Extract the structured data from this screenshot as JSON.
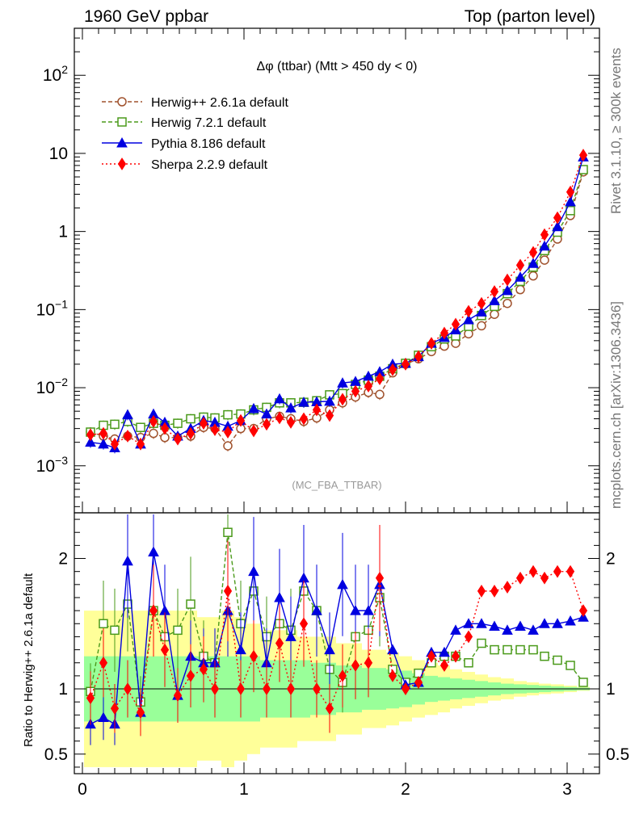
{
  "header": {
    "left": "1960 GeV ppbar",
    "right": "Top (parton level)"
  },
  "side": {
    "rivet": "Rivet 3.1.10, ≥ 300k events",
    "mcplots": "mcplots.cern.ch [arXiv:1306.3436]"
  },
  "colors": {
    "herwig_pp": "#a0522d",
    "herwig7": "#4a9a1a",
    "pythia": "#0000e0",
    "sherpa": "#ff0000",
    "band_inner": "#99ff99",
    "band_outer": "#ffff99"
  },
  "chart_data": [
    {
      "type": "line",
      "title": "Δφ (ttbar) (Mtt > 450 dy < 0)",
      "watermark": "(MC_FBA_TTBAR)",
      "xlabel": "",
      "ylabel": "",
      "xlim": [
        -0.05,
        3.2
      ],
      "ylim": [
        0.00025,
        400
      ],
      "y_scale": "log",
      "y_ticks": [
        {
          "value": 0.001,
          "label": "10",
          "sup": "−3"
        },
        {
          "value": 0.01,
          "label": "10",
          "sup": "−2"
        },
        {
          "value": 0.1,
          "label": "10",
          "sup": "−1"
        },
        {
          "value": 1,
          "label": "1",
          "sup": ""
        },
        {
          "value": 10,
          "label": "10",
          "sup": ""
        },
        {
          "value": 100,
          "label": "10",
          "sup": "2"
        }
      ],
      "legend_position": "top-left",
      "x": [
        0.05,
        0.13,
        0.2,
        0.28,
        0.36,
        0.44,
        0.51,
        0.59,
        0.67,
        0.75,
        0.82,
        0.9,
        0.98,
        1.06,
        1.14,
        1.22,
        1.29,
        1.37,
        1.45,
        1.53,
        1.61,
        1.69,
        1.77,
        1.84,
        1.92,
        2.0,
        2.08,
        2.16,
        2.24,
        2.31,
        2.39,
        2.47,
        2.55,
        2.63,
        2.71,
        2.79,
        2.86,
        2.94,
        3.02,
        3.1
      ],
      "series": [
        {
          "name": "Herwig++ 2.6.1a default",
          "marker": "open-circle",
          "style": "dashed",
          "values": [
            0.0027,
            0.0024,
            0.0022,
            0.0024,
            0.0023,
            0.0026,
            0.0023,
            0.0023,
            0.0024,
            0.0031,
            0.003,
            0.0018,
            0.003,
            0.003,
            0.004,
            0.0043,
            0.004,
            0.0037,
            0.0041,
            0.0052,
            0.0064,
            0.0076,
            0.0087,
            0.0082,
            0.0155,
            0.02,
            0.0234,
            0.029,
            0.034,
            0.037,
            0.049,
            0.062,
            0.087,
            0.12,
            0.18,
            0.27,
            0.43,
            0.8,
            1.6,
            5.8
          ]
        },
        {
          "name": "Herwig 7.2.1 default",
          "marker": "open-square",
          "style": "dashed",
          "values": [
            0.0027,
            0.0033,
            0.0034,
            0.0037,
            0.0031,
            0.0035,
            0.0033,
            0.0035,
            0.004,
            0.0042,
            0.0041,
            0.0045,
            0.0046,
            0.0052,
            0.0056,
            0.0064,
            0.0064,
            0.0065,
            0.0068,
            0.0081,
            0.0084,
            0.011,
            0.0125,
            0.014,
            0.0175,
            0.0205,
            0.026,
            0.0335,
            0.042,
            0.046,
            0.061,
            0.084,
            0.11,
            0.16,
            0.23,
            0.35,
            0.57,
            0.98,
            1.85,
            6.2
          ]
        },
        {
          "name": "Pythia 8.186 default",
          "marker": "filled-triangle",
          "style": "solid",
          "values": [
            0.002,
            0.0019,
            0.0017,
            0.0045,
            0.0019,
            0.0046,
            0.0036,
            0.0024,
            0.003,
            0.0038,
            0.0036,
            0.0032,
            0.0038,
            0.0054,
            0.0046,
            0.0072,
            0.0055,
            0.0065,
            0.0066,
            0.0067,
            0.0115,
            0.012,
            0.014,
            0.016,
            0.02,
            0.0205,
            0.025,
            0.037,
            0.044,
            0.055,
            0.074,
            0.093,
            0.13,
            0.175,
            0.26,
            0.39,
            0.65,
            1.15,
            2.4,
            9.0
          ]
        },
        {
          "name": "Sherpa 2.2.9 default",
          "marker": "filled-diamond",
          "style": "dotted",
          "values": [
            0.0025,
            0.0026,
            0.0019,
            0.0024,
            0.0019,
            0.0037,
            0.003,
            0.0022,
            0.0026,
            0.0035,
            0.0029,
            0.0027,
            0.0038,
            0.0028,
            0.0034,
            0.0041,
            0.0036,
            0.004,
            0.0052,
            0.0044,
            0.0071,
            0.009,
            0.0105,
            0.013,
            0.017,
            0.02,
            0.025,
            0.037,
            0.05,
            0.065,
            0.095,
            0.12,
            0.17,
            0.24,
            0.37,
            0.54,
            0.91,
            1.5,
            3.2,
            9.5
          ]
        }
      ]
    },
    {
      "type": "line",
      "ylabel": "Ratio to Herwig++ 2.6.1a default",
      "xlim": [
        -0.05,
        3.2
      ],
      "ylim": [
        0.35,
        2.35
      ],
      "x_ticks": [
        0,
        1,
        2,
        3
      ],
      "y_ticks": [
        0.5,
        1,
        2
      ],
      "y_ticks_right": [
        0.5,
        1,
        2
      ],
      "x": [
        0.05,
        0.13,
        0.2,
        0.28,
        0.36,
        0.44,
        0.51,
        0.59,
        0.67,
        0.75,
        0.82,
        0.9,
        0.98,
        1.06,
        1.14,
        1.22,
        1.29,
        1.37,
        1.45,
        1.53,
        1.61,
        1.69,
        1.77,
        1.84,
        1.92,
        2.0,
        2.08,
        2.16,
        2.24,
        2.31,
        2.39,
        2.47,
        2.55,
        2.63,
        2.71,
        2.79,
        2.86,
        2.94,
        3.02,
        3.1
      ],
      "band_inner_halfwidth": [
        0.25,
        0.25,
        0.25,
        0.25,
        0.25,
        0.25,
        0.25,
        0.25,
        0.25,
        0.25,
        0.25,
        0.25,
        0.25,
        0.25,
        0.22,
        0.22,
        0.22,
        0.22,
        0.2,
        0.2,
        0.18,
        0.18,
        0.16,
        0.16,
        0.15,
        0.14,
        0.12,
        0.1,
        0.09,
        0.08,
        0.07,
        0.06,
        0.05,
        0.04,
        0.035,
        0.03,
        0.025,
        0.02,
        0.015,
        0.01
      ],
      "band_outer_halfwidth": [
        0.6,
        0.6,
        0.6,
        0.6,
        0.6,
        0.6,
        0.6,
        0.6,
        0.6,
        0.55,
        0.55,
        0.6,
        0.55,
        0.5,
        0.45,
        0.45,
        0.45,
        0.4,
        0.4,
        0.4,
        0.35,
        0.35,
        0.3,
        0.3,
        0.28,
        0.25,
        0.22,
        0.2,
        0.18,
        0.15,
        0.13,
        0.11,
        0.09,
        0.08,
        0.06,
        0.05,
        0.04,
        0.035,
        0.025,
        0.015
      ],
      "series": [
        {
          "name": "Herwig 7.2.1 default",
          "values": [
            0.98,
            1.5,
            1.45,
            1.65,
            0.9,
            1.6,
            1.4,
            1.45,
            1.65,
            1.25,
            1.2,
            2.2,
            1.5,
            1.75,
            1.4,
            1.5,
            1.45,
            1.75,
            1.6,
            1.15,
            1.05,
            1.4,
            1.45,
            1.7,
            1.15,
            1.05,
            1.12,
            1.2,
            1.25,
            1.25,
            1.2,
            1.35,
            1.3,
            1.3,
            1.3,
            1.3,
            1.25,
            1.22,
            1.18,
            1.05
          ]
        },
        {
          "name": "Pythia 8.186 default",
          "values": [
            0.73,
            0.78,
            0.73,
            1.98,
            0.82,
            2.05,
            1.6,
            0.95,
            1.25,
            1.2,
            1.2,
            1.6,
            1.3,
            1.9,
            1.2,
            1.7,
            1.4,
            1.85,
            1.6,
            1.3,
            1.8,
            1.6,
            1.6,
            1.8,
            1.3,
            1.03,
            1.05,
            1.28,
            1.28,
            1.45,
            1.5,
            1.5,
            1.48,
            1.45,
            1.48,
            1.45,
            1.5,
            1.5,
            1.52,
            1.55
          ]
        },
        {
          "name": "Sherpa 2.2.9 default",
          "values": [
            0.93,
            1.2,
            0.85,
            1.0,
            0.82,
            1.6,
            1.3,
            0.95,
            1.1,
            1.15,
            1.0,
            1.75,
            1.0,
            1.25,
            1.0,
            1.35,
            1.0,
            1.5,
            1.0,
            0.85,
            1.1,
            1.18,
            1.2,
            1.85,
            1.1,
            1.0,
            1.05,
            1.25,
            1.18,
            1.25,
            1.4,
            1.75,
            1.75,
            1.78,
            1.85,
            1.9,
            1.85,
            1.9,
            1.9,
            1.6
          ]
        }
      ]
    }
  ]
}
